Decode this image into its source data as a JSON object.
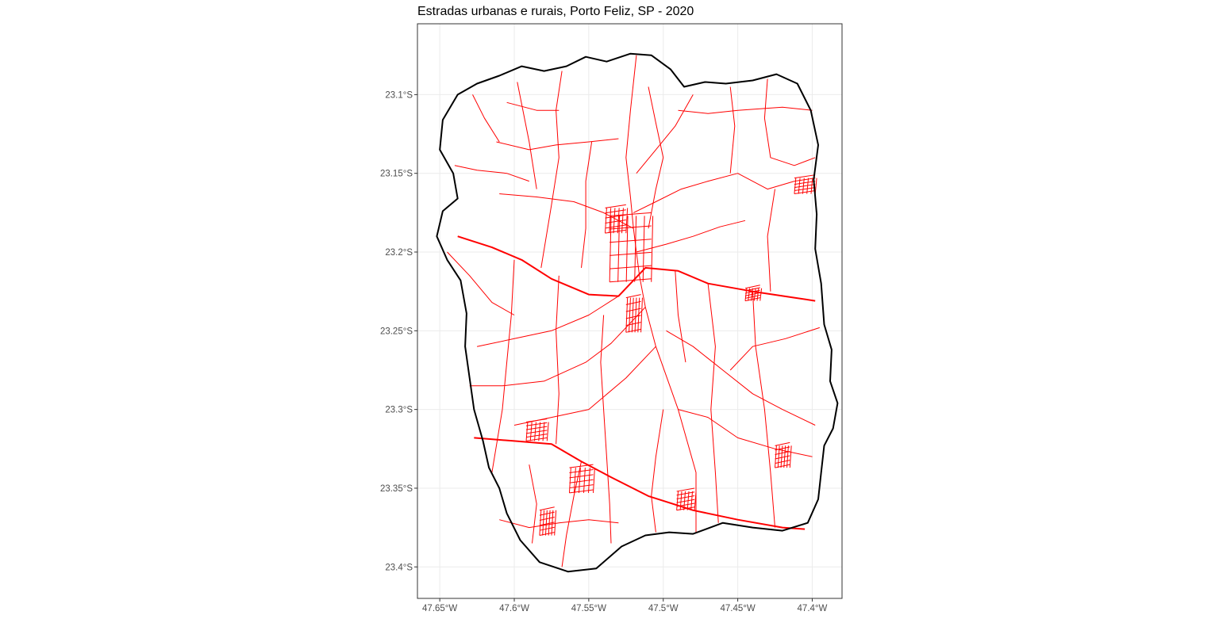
{
  "title": "Estradas urbanas e rurais, Porto Feliz, SP - 2020",
  "chart_data": {
    "type": "map",
    "title": "Estradas urbanas e rurais, Porto Feliz, SP - 2020",
    "xlabel": "",
    "ylabel": "",
    "grid": true,
    "x_ticks": [
      "47.65°W",
      "47.6°W",
      "47.55°W",
      "47.5°W",
      "47.45°W",
      "47.4°W"
    ],
    "y_ticks": [
      "23.1°S",
      "23.15°S",
      "23.2°S",
      "23.25°S",
      "23.3°S",
      "23.35°S",
      "23.4°S"
    ],
    "x_tick_values": [
      -47.65,
      -47.6,
      -47.55,
      -47.5,
      -47.45,
      -47.4
    ],
    "y_tick_values": [
      -23.1,
      -23.15,
      -23.2,
      -23.25,
      -23.3,
      -23.35,
      -23.4
    ],
    "xlim": [
      -47.665,
      -47.38
    ],
    "ylim": [
      -23.42,
      -23.055
    ],
    "colors": {
      "roads": "#ff0000",
      "boundary": "#000000",
      "grid": "#ebebeb",
      "panel_border": "#333333"
    },
    "boundary": [
      [
        -47.565,
        -23.082
      ],
      [
        -47.552,
        -23.076
      ],
      [
        -47.538,
        -23.079
      ],
      [
        -47.522,
        -23.074
      ],
      [
        -47.508,
        -23.075
      ],
      [
        -47.495,
        -23.084
      ],
      [
        -47.486,
        -23.095
      ],
      [
        -47.472,
        -23.092
      ],
      [
        -47.458,
        -23.093
      ],
      [
        -47.44,
        -23.091
      ],
      [
        -47.424,
        -23.087
      ],
      [
        -47.41,
        -23.093
      ],
      [
        -47.401,
        -23.11
      ],
      [
        -47.396,
        -23.132
      ],
      [
        -47.399,
        -23.154
      ],
      [
        -47.397,
        -23.176
      ],
      [
        -47.398,
        -23.198
      ],
      [
        -47.394,
        -23.22
      ],
      [
        -47.392,
        -23.246
      ],
      [
        -47.387,
        -23.262
      ],
      [
        -47.388,
        -23.282
      ],
      [
        -47.383,
        -23.296
      ],
      [
        -47.386,
        -23.312
      ],
      [
        -47.392,
        -23.323
      ],
      [
        -47.394,
        -23.34
      ],
      [
        -47.396,
        -23.357
      ],
      [
        -47.403,
        -23.372
      ],
      [
        -47.42,
        -23.377
      ],
      [
        -47.44,
        -23.375
      ],
      [
        -47.46,
        -23.372
      ],
      [
        -47.48,
        -23.379
      ],
      [
        -47.496,
        -23.378
      ],
      [
        -47.512,
        -23.38
      ],
      [
        -47.528,
        -23.387
      ],
      [
        -47.545,
        -23.401
      ],
      [
        -47.564,
        -23.403
      ],
      [
        -47.583,
        -23.397
      ],
      [
        -47.596,
        -23.383
      ],
      [
        -47.605,
        -23.366
      ],
      [
        -47.61,
        -23.35
      ],
      [
        -47.617,
        -23.337
      ],
      [
        -47.621,
        -23.32
      ],
      [
        -47.627,
        -23.3
      ],
      [
        -47.63,
        -23.28
      ],
      [
        -47.633,
        -23.26
      ],
      [
        -47.632,
        -23.239
      ],
      [
        -47.636,
        -23.218
      ],
      [
        -47.645,
        -23.205
      ],
      [
        -47.652,
        -23.19
      ],
      [
        -47.648,
        -23.174
      ],
      [
        -47.638,
        -23.166
      ],
      [
        -47.641,
        -23.15
      ],
      [
        -47.65,
        -23.135
      ],
      [
        -47.648,
        -23.116
      ],
      [
        -47.638,
        -23.1
      ],
      [
        -47.625,
        -23.093
      ],
      [
        -47.61,
        -23.088
      ],
      [
        -47.595,
        -23.082
      ],
      [
        -47.58,
        -23.085
      ],
      [
        -47.565,
        -23.082
      ]
    ],
    "roads": [
      [
        [
          -47.627,
          -23.318
        ],
        [
          -47.6,
          -23.32
        ],
        [
          -47.575,
          -23.322
        ],
        [
          -47.555,
          -23.333
        ],
        [
          -47.535,
          -23.343
        ],
        [
          -47.51,
          -23.355
        ],
        [
          -47.48,
          -23.364
        ],
        [
          -47.45,
          -23.37
        ],
        [
          -47.42,
          -23.375
        ],
        [
          -47.405,
          -23.376
        ]
      ],
      [
        [
          -47.638,
          -23.19
        ],
        [
          -47.615,
          -23.197
        ],
        [
          -47.595,
          -23.205
        ],
        [
          -47.575,
          -23.217
        ],
        [
          -47.55,
          -23.227
        ],
        [
          -47.53,
          -23.228
        ],
        [
          -47.512,
          -23.21
        ],
        [
          -47.49,
          -23.212
        ],
        [
          -47.47,
          -23.22
        ],
        [
          -47.44,
          -23.225
        ],
        [
          -47.412,
          -23.229
        ],
        [
          -47.398,
          -23.231
        ]
      ],
      [
        [
          -47.522,
          -23.165
        ],
        [
          -47.52,
          -23.185
        ],
        [
          -47.518,
          -23.2
        ],
        [
          -47.516,
          -23.215
        ],
        [
          -47.512,
          -23.235
        ],
        [
          -47.505,
          -23.26
        ],
        [
          -47.49,
          -23.3
        ],
        [
          -47.478,
          -23.34
        ],
        [
          -47.478,
          -23.378
        ]
      ],
      [
        [
          -47.518,
          -23.075
        ],
        [
          -47.522,
          -23.11
        ],
        [
          -47.525,
          -23.14
        ],
        [
          -47.522,
          -23.165
        ]
      ],
      [
        [
          -47.518,
          -23.15
        ],
        [
          -47.505,
          -23.135
        ],
        [
          -47.492,
          -23.12
        ],
        [
          -47.48,
          -23.1
        ]
      ],
      [
        [
          -47.52,
          -23.175
        ],
        [
          -47.505,
          -23.168
        ],
        [
          -47.488,
          -23.16
        ],
        [
          -47.47,
          -23.155
        ],
        [
          -47.45,
          -23.15
        ],
        [
          -47.43,
          -23.16
        ],
        [
          -47.412,
          -23.155
        ]
      ],
      [
        [
          -47.518,
          -23.2
        ],
        [
          -47.498,
          -23.195
        ],
        [
          -47.48,
          -23.19
        ],
        [
          -47.462,
          -23.184
        ],
        [
          -47.445,
          -23.18
        ]
      ],
      [
        [
          -47.52,
          -23.185
        ],
        [
          -47.54,
          -23.175
        ],
        [
          -47.56,
          -23.168
        ],
        [
          -47.585,
          -23.165
        ],
        [
          -47.61,
          -23.163
        ]
      ],
      [
        [
          -47.51,
          -23.185
        ],
        [
          -47.505,
          -23.16
        ],
        [
          -47.5,
          -23.14
        ],
        [
          -47.505,
          -23.118
        ],
        [
          -47.51,
          -23.095
        ]
      ],
      [
        [
          -47.548,
          -23.13
        ],
        [
          -47.552,
          -23.155
        ],
        [
          -47.552,
          -23.185
        ],
        [
          -47.555,
          -23.21
        ]
      ],
      [
        [
          -47.568,
          -23.085
        ],
        [
          -47.572,
          -23.11
        ],
        [
          -47.57,
          -23.14
        ],
        [
          -47.575,
          -23.17
        ],
        [
          -47.582,
          -23.21
        ]
      ],
      [
        [
          -47.598,
          -23.092
        ],
        [
          -47.59,
          -23.13
        ],
        [
          -47.585,
          -23.16
        ]
      ],
      [
        [
          -47.612,
          -23.13
        ],
        [
          -47.59,
          -23.135
        ],
        [
          -47.572,
          -23.132
        ],
        [
          -47.55,
          -23.13
        ],
        [
          -47.53,
          -23.128
        ]
      ],
      [
        [
          -47.64,
          -23.145
        ],
        [
          -47.625,
          -23.148
        ],
        [
          -47.605,
          -23.15
        ],
        [
          -47.59,
          -23.155
        ]
      ],
      [
        [
          -47.628,
          -23.1
        ],
        [
          -47.62,
          -23.115
        ],
        [
          -47.61,
          -23.13
        ]
      ],
      [
        [
          -47.605,
          -23.105
        ],
        [
          -47.585,
          -23.11
        ],
        [
          -47.57,
          -23.11
        ]
      ],
      [
        [
          -47.498,
          -23.25
        ],
        [
          -47.48,
          -23.26
        ],
        [
          -47.46,
          -23.275
        ],
        [
          -47.44,
          -23.29
        ],
        [
          -47.42,
          -23.3
        ],
        [
          -47.398,
          -23.31
        ]
      ],
      [
        [
          -47.47,
          -23.22
        ],
        [
          -47.465,
          -23.26
        ],
        [
          -47.468,
          -23.3
        ],
        [
          -47.465,
          -23.34
        ],
        [
          -47.463,
          -23.372
        ]
      ],
      [
        [
          -47.44,
          -23.225
        ],
        [
          -47.438,
          -23.26
        ],
        [
          -47.432,
          -23.3
        ],
        [
          -47.428,
          -23.34
        ],
        [
          -47.425,
          -23.375
        ]
      ],
      [
        [
          -47.53,
          -23.228
        ],
        [
          -47.55,
          -23.24
        ],
        [
          -47.575,
          -23.25
        ],
        [
          -47.6,
          -23.255
        ],
        [
          -47.625,
          -23.26
        ]
      ],
      [
        [
          -47.512,
          -23.235
        ],
        [
          -47.535,
          -23.258
        ],
        [
          -47.552,
          -23.27
        ],
        [
          -47.58,
          -23.282
        ],
        [
          -47.608,
          -23.285
        ],
        [
          -47.63,
          -23.285
        ]
      ],
      [
        [
          -47.54,
          -23.24
        ],
        [
          -47.542,
          -23.27
        ],
        [
          -47.54,
          -23.3
        ],
        [
          -47.538,
          -23.33
        ],
        [
          -47.536,
          -23.36
        ],
        [
          -47.535,
          -23.385
        ]
      ],
      [
        [
          -47.57,
          -23.215
        ],
        [
          -47.572,
          -23.25
        ],
        [
          -47.57,
          -23.29
        ],
        [
          -47.572,
          -23.322
        ]
      ],
      [
        [
          -47.6,
          -23.205
        ],
        [
          -47.602,
          -23.24
        ],
        [
          -47.605,
          -23.27
        ],
        [
          -47.608,
          -23.3
        ],
        [
          -47.615,
          -23.34
        ]
      ],
      [
        [
          -47.505,
          -23.26
        ],
        [
          -47.525,
          -23.28
        ],
        [
          -47.55,
          -23.3
        ],
        [
          -47.575,
          -23.305
        ],
        [
          -47.6,
          -23.31
        ]
      ],
      [
        [
          -47.49,
          -23.3
        ],
        [
          -47.47,
          -23.305
        ],
        [
          -47.45,
          -23.318
        ],
        [
          -47.425,
          -23.325
        ],
        [
          -47.4,
          -23.33
        ]
      ],
      [
        [
          -47.555,
          -23.333
        ],
        [
          -47.56,
          -23.355
        ],
        [
          -47.565,
          -23.38
        ],
        [
          -47.568,
          -23.4
        ]
      ],
      [
        [
          -47.59,
          -23.335
        ],
        [
          -47.585,
          -23.36
        ],
        [
          -47.588,
          -23.385
        ]
      ],
      [
        [
          -47.5,
          -23.3
        ],
        [
          -47.505,
          -23.33
        ],
        [
          -47.508,
          -23.355
        ],
        [
          -47.505,
          -23.378
        ]
      ],
      [
        [
          -47.425,
          -23.16
        ],
        [
          -47.43,
          -23.19
        ],
        [
          -47.428,
          -23.225
        ]
      ],
      [
        [
          -47.455,
          -23.095
        ],
        [
          -47.452,
          -23.12
        ],
        [
          -47.455,
          -23.15
        ]
      ],
      [
        [
          -47.43,
          -23.09
        ],
        [
          -47.432,
          -23.115
        ],
        [
          -47.428,
          -23.14
        ],
        [
          -47.412,
          -23.145
        ],
        [
          -47.398,
          -23.14
        ]
      ],
      [
        [
          -47.645,
          -23.2
        ],
        [
          -47.63,
          -23.215
        ],
        [
          -47.615,
          -23.232
        ],
        [
          -47.6,
          -23.24
        ]
      ],
      [
        [
          -47.49,
          -23.11
        ],
        [
          -47.47,
          -23.112
        ],
        [
          -47.45,
          -23.11
        ],
        [
          -47.42,
          -23.108
        ],
        [
          -47.4,
          -23.11
        ]
      ],
      [
        [
          -47.492,
          -23.212
        ],
        [
          -47.49,
          -23.24
        ],
        [
          -47.485,
          -23.27
        ]
      ],
      [
        [
          -47.455,
          -23.275
        ],
        [
          -47.44,
          -23.26
        ],
        [
          -47.418,
          -23.255
        ],
        [
          -47.395,
          -23.248
        ]
      ],
      [
        [
          -47.61,
          -23.37
        ],
        [
          -47.59,
          -23.375
        ],
        [
          -47.57,
          -23.372
        ],
        [
          -47.55,
          -23.37
        ],
        [
          -47.53,
          -23.372
        ]
      ]
    ],
    "urban_patches": [
      {
        "center": [
          -47.522,
          -23.198
        ],
        "size": [
          0.028,
          0.042
        ]
      },
      {
        "center": [
          -47.532,
          -23.18
        ],
        "size": [
          0.014,
          0.016
        ]
      },
      {
        "center": [
          -47.52,
          -23.24
        ],
        "size": [
          0.01,
          0.022
        ]
      },
      {
        "center": [
          -47.585,
          -23.314
        ],
        "size": [
          0.014,
          0.012
        ]
      },
      {
        "center": [
          -47.555,
          -23.345
        ],
        "size": [
          0.016,
          0.016
        ]
      },
      {
        "center": [
          -47.578,
          -23.372
        ],
        "size": [
          0.01,
          0.016
        ]
      },
      {
        "center": [
          -47.485,
          -23.358
        ],
        "size": [
          0.012,
          0.012
        ]
      },
      {
        "center": [
          -47.42,
          -23.33
        ],
        "size": [
          0.01,
          0.014
        ]
      },
      {
        "center": [
          -47.405,
          -23.158
        ],
        "size": [
          0.014,
          0.01
        ]
      },
      {
        "center": [
          -47.44,
          -23.227
        ],
        "size": [
          0.01,
          0.008
        ]
      }
    ]
  }
}
